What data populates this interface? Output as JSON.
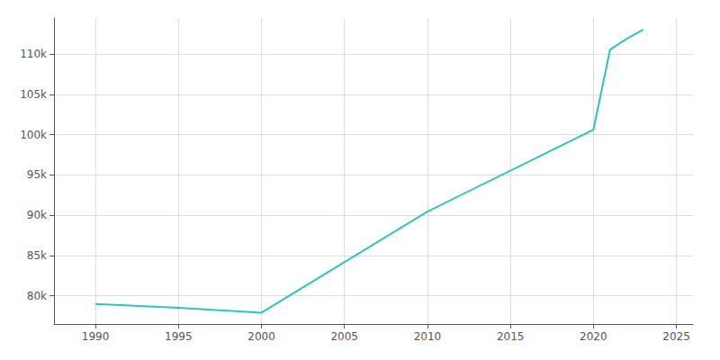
{
  "chart_data": {
    "type": "line",
    "x": [
      1990,
      1995,
      2000,
      2010,
      2020,
      2021,
      2022,
      2023
    ],
    "values": [
      79000,
      78500,
      77900,
      90468,
      100618,
      110566,
      111911,
      113063
    ],
    "color": "#2ec4b6",
    "xlim": [
      1987.5,
      2026
    ],
    "xticks": [
      1990,
      1995,
      2000,
      2005,
      2010,
      2015,
      2020,
      2025
    ],
    "ylim": [
      76500,
      114500
    ],
    "yticks": [
      {
        "value": 80000,
        "label": "80k"
      },
      {
        "value": 85000,
        "label": "85k"
      },
      {
        "value": 90000,
        "label": "90k"
      },
      {
        "value": 95000,
        "label": "95k"
      },
      {
        "value": 100000,
        "label": "100k"
      },
      {
        "value": 105000,
        "label": "105k"
      },
      {
        "value": 110000,
        "label": "110k"
      }
    ],
    "grid": true
  }
}
